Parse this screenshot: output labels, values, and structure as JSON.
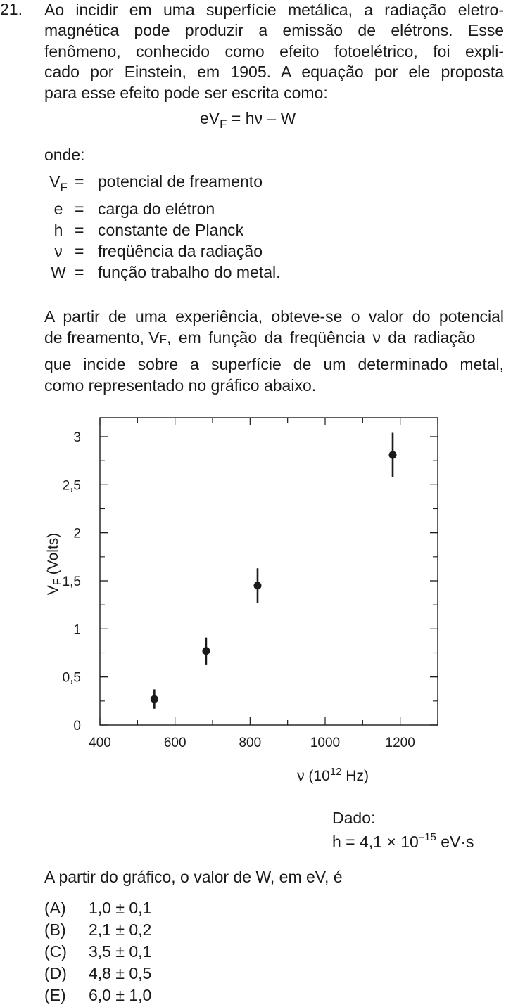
{
  "question_number": "21.",
  "intro_lines": [
    "Ao incidir em uma superfície metálica, a radiação eletro-",
    "magnética pode produzir a emissão de elétrons. Esse",
    "fenômeno, conhecido como efeito fotoelétrico, foi expli-",
    "cado por Einstein, em 1905. A equação por ele proposta",
    "para esse efeito pode ser escrita como:"
  ],
  "equation": {
    "lhs_base": "eV",
    "lhs_sub": "F",
    "rhs": " = hν – W"
  },
  "onde_label": "onde:",
  "definitions": [
    {
      "symbol": "V",
      "symbol_sub": "F",
      "eq": "=",
      "text": "potencial de freamento"
    },
    {
      "symbol": "e",
      "symbol_sub": "",
      "eq": "=",
      "text": "carga do elétron"
    },
    {
      "symbol": "h",
      "symbol_sub": "",
      "eq": "=",
      "text": "constante de Planck"
    },
    {
      "symbol": "ν",
      "symbol_sub": "",
      "eq": "=",
      "text": "freqüência da radiação"
    },
    {
      "symbol": "W",
      "symbol_sub": "",
      "eq": "=",
      "text": "função trabalho do metal."
    }
  ],
  "paragraph2": {
    "line1": "A partir de uma experiência, obteve-se o valor do potencial",
    "line2_a": "de freamento, V",
    "line2_sub": "F",
    "line2_b": ", em função da freqüência ν da radiação",
    "line3": "que incide sobre a superfície de um determinado metal,",
    "line4": "como representado no gráfico abaixo."
  },
  "chart_data": {
    "type": "scatter",
    "xlabel_base": "ν (10",
    "xlabel_sup": "12",
    "xlabel_end": " Hz)",
    "ylabel_base": "V",
    "ylabel_sub": "F",
    "ylabel_end": " (Volts)",
    "xlim": [
      400,
      1300
    ],
    "ylim": [
      0,
      3.2
    ],
    "x_ticks": [
      400,
      600,
      800,
      1000,
      1200
    ],
    "x_tick_labels": [
      "400",
      "600",
      "800",
      "1000",
      "1200"
    ],
    "y_ticks": [
      0,
      0.5,
      1,
      1.5,
      2,
      2.5,
      3
    ],
    "y_tick_labels": [
      "0",
      "0,5",
      "1",
      "1,5",
      "2",
      "2,5",
      "3"
    ],
    "grid": false,
    "points": [
      {
        "x": 545,
        "y": 0.27,
        "err": 0.1
      },
      {
        "x": 683,
        "y": 0.77,
        "err": 0.14
      },
      {
        "x": 820,
        "y": 1.45,
        "err": 0.18
      },
      {
        "x": 1180,
        "y": 2.81,
        "err": 0.23
      }
    ]
  },
  "dado_label": "Dado:",
  "h_value": {
    "base": "h = 4,1 × 10",
    "sup": "–15",
    "unit": " eV·s"
  },
  "question": "A partir do gráfico, o valor de  W, em  eV, é",
  "options": [
    {
      "letter": "(A)",
      "value": "1,0 ± 0,1"
    },
    {
      "letter": "(B)",
      "value": "2,1 ± 0,2"
    },
    {
      "letter": "(C)",
      "value": "3,5 ± 0,1"
    },
    {
      "letter": "(D)",
      "value": "4,8 ± 0,5"
    },
    {
      "letter": "(E)",
      "value": "6,0 ± 1,0"
    }
  ]
}
